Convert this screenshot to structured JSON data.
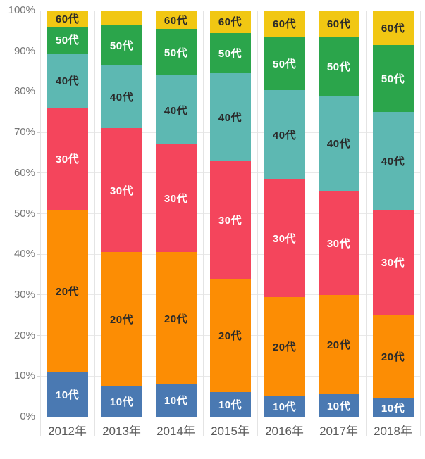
{
  "chart_data": {
    "type": "bar",
    "stacked": true,
    "percent": true,
    "title": "",
    "xlabel": "",
    "ylabel": "",
    "ylim": [
      0,
      100
    ],
    "grid": true,
    "legend": "none (labels drawn inside segments)",
    "y_tick_labels": [
      "0%",
      "10%",
      "20%",
      "30%",
      "40%",
      "50%",
      "60%",
      "70%",
      "80%",
      "90%",
      "100%"
    ],
    "categories": [
      "2012年",
      "2013年",
      "2014年",
      "2015年",
      "2016年",
      "2017年",
      "2018年"
    ],
    "series": [
      {
        "name": "10代",
        "color": "#4a79b2",
        "label_color": "#ffffff",
        "values": [
          11,
          7.5,
          8,
          6,
          5,
          5.5,
          4.5
        ]
      },
      {
        "name": "20代",
        "color": "#fc8d04",
        "label_color": "#2a2a2a",
        "values": [
          40,
          33,
          32.5,
          28,
          24.5,
          24.5,
          20.5
        ]
      },
      {
        "name": "30代",
        "color": "#f4455c",
        "label_color": "#ffffff",
        "values": [
          25,
          30.5,
          26.5,
          29,
          29,
          25.5,
          26
        ]
      },
      {
        "name": "40代",
        "color": "#5db8b2",
        "label_color": "#2a2a2a",
        "values": [
          13.5,
          15.5,
          17,
          21.5,
          22,
          23.5,
          24
        ]
      },
      {
        "name": "50代",
        "color": "#2ba54b",
        "label_color": "#ffffff",
        "values": [
          6.5,
          10,
          11.5,
          10,
          13,
          14.5,
          16.5
        ]
      },
      {
        "name": "60代",
        "color": "#f1c713",
        "label_color": "#2a2a2a",
        "values": [
          4,
          3.5,
          4.5,
          5.5,
          6.5,
          6.5,
          8.5
        ]
      }
    ],
    "label_min_value_to_show": 4,
    "colors": {
      "gridline": "#e9e9e9",
      "column_separator": "#e4e4e4",
      "axis_line": "#cccccc",
      "y_tick_text": "#767676",
      "x_tick_text": "#5a5a5a",
      "background": "#ffffff"
    }
  }
}
